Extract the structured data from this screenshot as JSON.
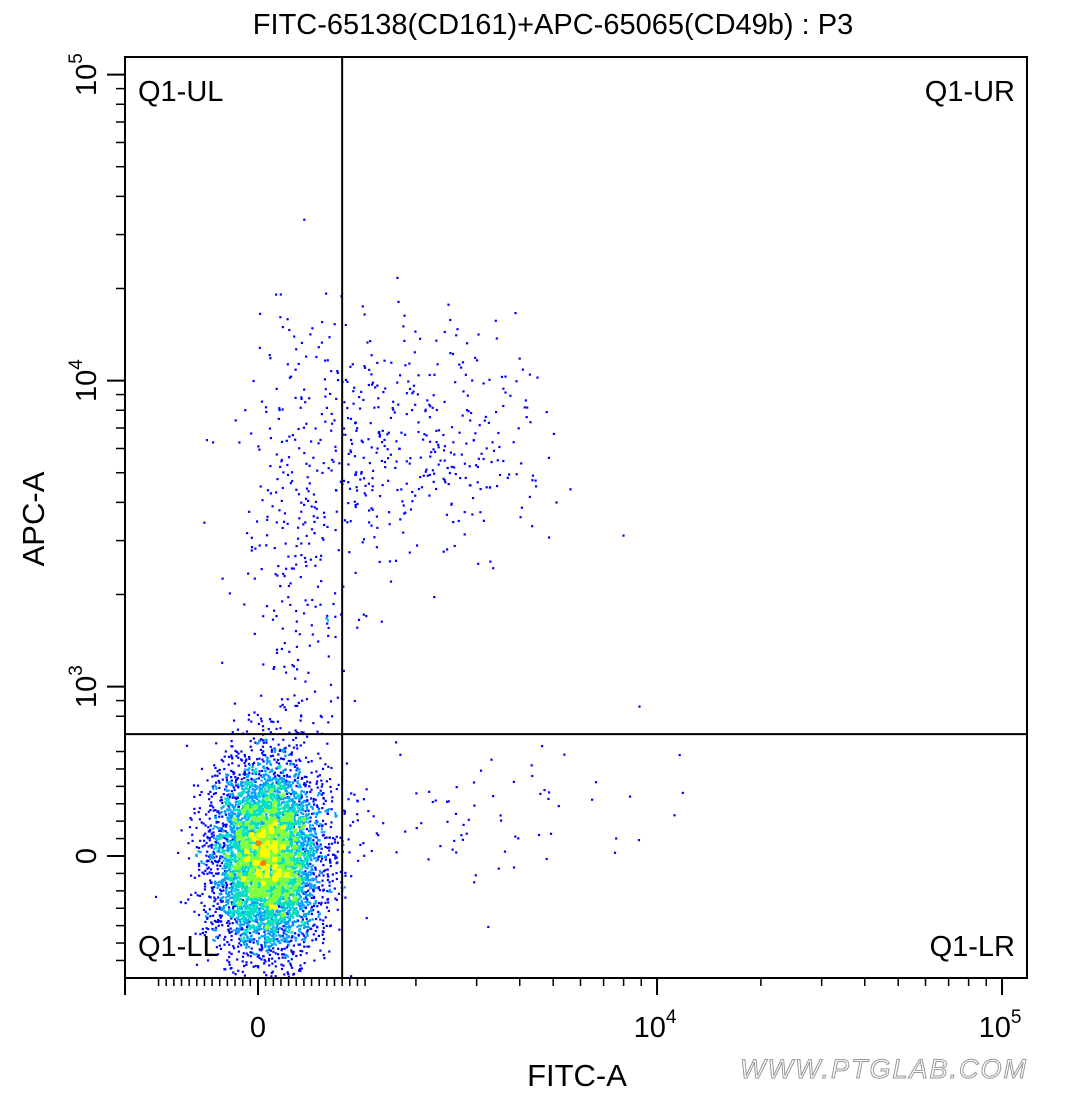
{
  "chart_data": {
    "type": "scatter",
    "title": "FITC-65138(CD161)+APC-65065(CD49b) : P3",
    "xlabel": "FITC-A",
    "ylabel": "APC-A",
    "x_scale": "biexponential",
    "y_scale": "biexponential",
    "xlim": [
      -1400,
      100000
    ],
    "ylim": [
      -1000,
      100000
    ],
    "x_ticks": [
      {
        "value": 0,
        "base": "0",
        "exp": ""
      },
      {
        "value": 10000,
        "base": "10",
        "exp": "4"
      },
      {
        "value": 100000,
        "base": "10",
        "exp": "5"
      }
    ],
    "y_ticks": [
      {
        "value": 0,
        "base": "0",
        "exp": ""
      },
      {
        "value": 1000,
        "base": "10",
        "exp": "3"
      },
      {
        "value": 10000,
        "base": "10",
        "exp": "4"
      },
      {
        "value": 100000,
        "base": "10",
        "exp": "5"
      }
    ],
    "gates": {
      "x_threshold": 1100,
      "y_threshold": 700
    },
    "quadrants": [
      {
        "name": "Q1-UL",
        "position": "top-left"
      },
      {
        "name": "Q1-UR",
        "position": "top-right"
      },
      {
        "name": "Q1-LL",
        "position": "bottom-left"
      },
      {
        "name": "Q1-LR",
        "position": "bottom-right"
      }
    ],
    "populations": [
      {
        "name": "main",
        "x_center": 100,
        "y_center": 0,
        "x_spread": 350,
        "y_spread": 260,
        "count": 7000
      },
      {
        "name": "upper-right cluster",
        "x_center": 2000,
        "y_center": 6500,
        "x_spread": 0.18,
        "y_spread": 0.18,
        "count": 380
      },
      {
        "name": "upper-left stream",
        "x_center": 500,
        "y_center": 2500,
        "x_spread": 400,
        "y_spread": 0.45,
        "count": 330
      },
      {
        "name": "lower-right scatter",
        "x_center": 2200,
        "y_center": 200,
        "x_spread": 0.3,
        "y_spread": 260,
        "count": 90
      }
    ],
    "density_colors": [
      "#0000ff",
      "#00a0ff",
      "#00e0c0",
      "#7fff3f",
      "#ffff00",
      "#ff8000",
      "#ff0000"
    ],
    "grid": false,
    "legend": "none"
  },
  "watermark": "WWW.PTGLAB.COM"
}
